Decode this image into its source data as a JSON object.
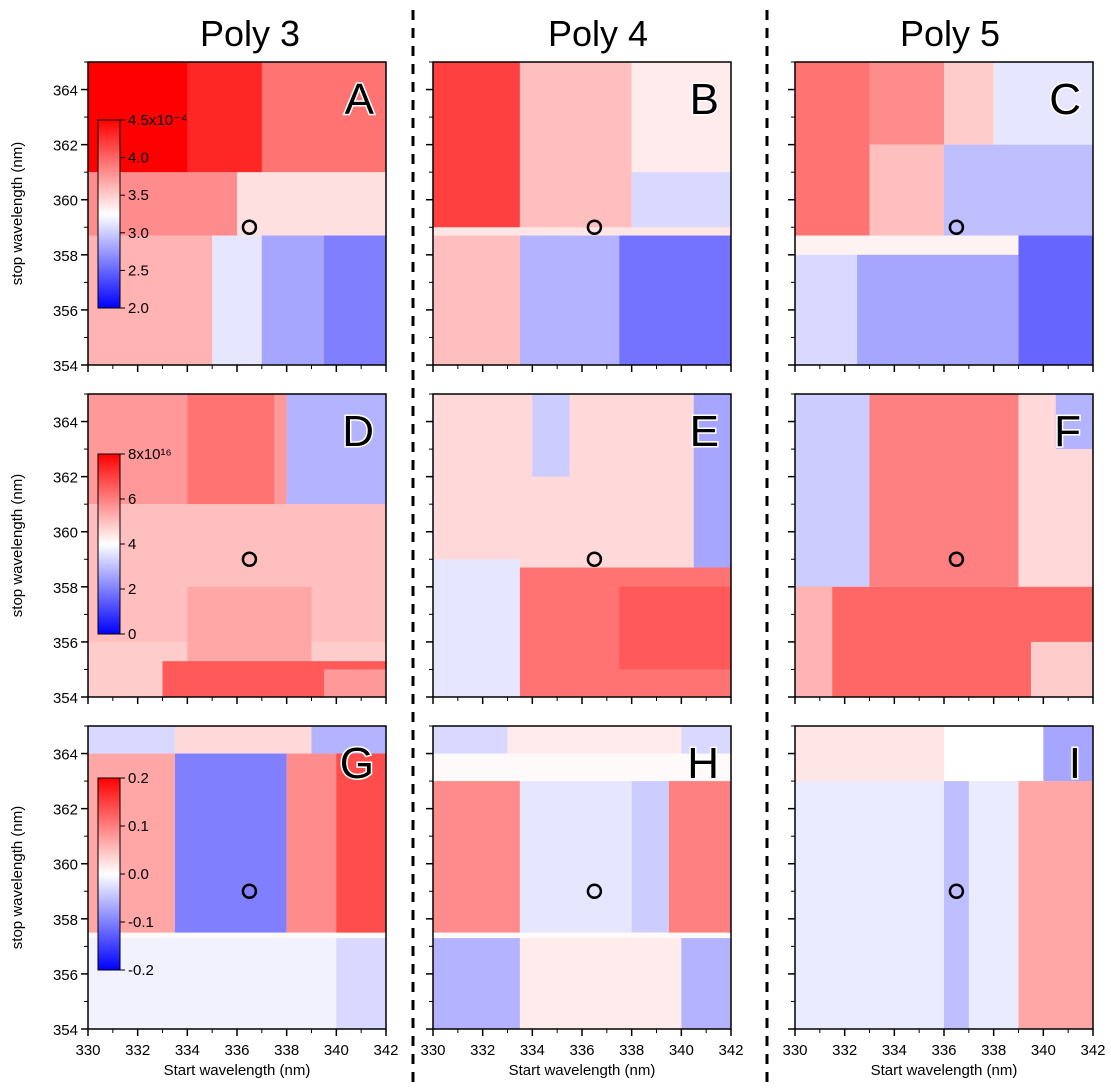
{
  "figure": {
    "column_titles": [
      "Poly 3",
      "Poly 4",
      "Poly 5"
    ],
    "ylabel": "stop wavelength (nm)",
    "xlabel": "Start wavelength (nm)"
  },
  "chart_data": {
    "type": "heatmap",
    "xlim": [
      330,
      342
    ],
    "ylim": [
      354,
      365
    ],
    "x_ticks": [
      "330",
      "332",
      "334",
      "336",
      "338",
      "340",
      "342"
    ],
    "y_ticks": [
      "354",
      "356",
      "358",
      "360",
      "362",
      "364"
    ],
    "marker": {
      "x": 336.5,
      "y": 359
    },
    "rows": [
      {
        "colorbar": {
          "ticks": [
            "4.5x10⁻⁴",
            "4.0",
            "3.5",
            "3.0",
            "2.5",
            "2.0"
          ],
          "min": 2.0,
          "max": 4.5,
          "min_color": "#0000ff",
          "mid_color": "#ffffff",
          "max_color": "#ff0000"
        },
        "panels": [
          {
            "label": "A",
            "regions": [
              [
                330,
                342,
                354,
                365,
                0.25
              ],
              [
                330,
                337,
                361,
                365,
                0.9
              ],
              [
                330,
                334,
                361,
                365,
                1.0
              ],
              [
                334,
                337,
                361,
                365,
                0.85
              ],
              [
                337,
                342,
                361,
                365,
                0.55
              ],
              [
                330,
                336,
                358.7,
                361,
                0.45
              ],
              [
                336,
                342,
                358.7,
                361,
                0.12
              ],
              [
                330,
                335,
                354,
                358.7,
                0.3
              ],
              [
                335,
                337,
                354,
                358.7,
                -0.1
              ],
              [
                337,
                339.5,
                354,
                358.7,
                -0.35
              ],
              [
                339.5,
                342,
                354,
                358.7,
                -0.5
              ]
            ]
          },
          {
            "label": "B",
            "regions": [
              [
                330,
                342,
                354,
                365,
                0.1
              ],
              [
                330,
                333.5,
                359,
                365,
                0.75
              ],
              [
                333.5,
                338,
                359,
                365,
                0.25
              ],
              [
                338,
                342,
                361,
                365,
                0.08
              ],
              [
                338,
                342,
                359,
                361,
                -0.15
              ],
              [
                330,
                333.5,
                354,
                358.7,
                0.25
              ],
              [
                333.5,
                337.5,
                354,
                358.7,
                -0.3
              ],
              [
                337.5,
                342,
                354,
                358.7,
                -0.55
              ]
            ]
          },
          {
            "label": "C",
            "regions": [
              [
                330,
                342,
                354,
                365,
                0.05
              ],
              [
                330,
                333,
                358.7,
                365,
                0.55
              ],
              [
                333,
                336,
                362,
                365,
                0.45
              ],
              [
                336,
                338,
                362,
                365,
                0.2
              ],
              [
                333,
                336,
                358.7,
                362,
                0.25
              ],
              [
                336,
                342,
                358.7,
                362,
                -0.25
              ],
              [
                338,
                342,
                362,
                365,
                -0.1
              ],
              [
                330,
                332.5,
                354,
                358,
                -0.15
              ],
              [
                332.5,
                339,
                354,
                358,
                -0.35
              ],
              [
                339,
                342,
                354,
                358.7,
                -0.6
              ]
            ]
          }
        ]
      },
      {
        "colorbar": {
          "ticks": [
            "8x10¹⁶",
            "6",
            "4",
            "2",
            "0"
          ],
          "min": 0,
          "max": 8,
          "min_color": "#0000ff",
          "mid_color": "#ffffff",
          "max_color": "#ff0000"
        },
        "panels": [
          {
            "label": "D",
            "regions": [
              [
                330,
                342,
                354,
                365,
                0.2
              ],
              [
                330,
                338,
                361,
                365,
                0.4
              ],
              [
                334,
                337.5,
                361,
                365,
                0.55
              ],
              [
                338,
                342,
                361,
                365,
                -0.3
              ],
              [
                330,
                342,
                356,
                361,
                0.25
              ],
              [
                334,
                339,
                355,
                358,
                0.35
              ],
              [
                333,
                342,
                354,
                355.3,
                0.65
              ],
              [
                339.5,
                342,
                354,
                355,
                0.4
              ]
            ]
          },
          {
            "label": "E",
            "regions": [
              [
                330,
                342,
                354,
                365,
                0.15
              ],
              [
                334,
                335.5,
                362,
                365,
                -0.2
              ],
              [
                340.5,
                342,
                358,
                365,
                -0.35
              ],
              [
                330,
                333.5,
                354,
                359,
                -0.1
              ],
              [
                333.5,
                342,
                354,
                358.7,
                0.55
              ],
              [
                337.5,
                342,
                355,
                358,
                0.65
              ]
            ]
          },
          {
            "label": "F",
            "regions": [
              [
                330,
                342,
                354,
                365,
                0.1
              ],
              [
                330,
                333,
                358,
                365,
                -0.2
              ],
              [
                333,
                339,
                358,
                365,
                0.5
              ],
              [
                339,
                342,
                358,
                365,
                0.15
              ],
              [
                340.5,
                342,
                363,
                365,
                -0.3
              ],
              [
                330,
                342,
                354,
                358,
                0.6
              ],
              [
                330,
                331.5,
                354,
                358,
                0.3
              ],
              [
                339.5,
                342,
                354,
                356,
                0.2
              ]
            ]
          }
        ]
      },
      {
        "colorbar": {
          "ticks": [
            "0.2",
            "0.1",
            "0.0",
            "-0.1",
            "-0.2"
          ],
          "min": -0.25,
          "max": 0.25,
          "min_color": "#0000ff",
          "mid_color": "#ffffff",
          "max_color": "#ff0000"
        },
        "panels": [
          {
            "label": "G",
            "regions": [
              [
                330,
                342,
                354,
                365,
                0.02
              ],
              [
                330,
                333.5,
                364,
                365,
                -0.15
              ],
              [
                333.5,
                339,
                364,
                365,
                0.15
              ],
              [
                339,
                342,
                364,
                365,
                -0.3
              ],
              [
                330,
                333.5,
                357.5,
                364,
                0.35
              ],
              [
                333.5,
                338,
                357.5,
                364,
                -0.5
              ],
              [
                338,
                342,
                357.5,
                364,
                0.45
              ],
              [
                340,
                342,
                357.5,
                364,
                0.7
              ],
              [
                330,
                342,
                354,
                357.3,
                -0.05
              ],
              [
                340,
                342,
                354,
                357.3,
                -0.15
              ]
            ]
          },
          {
            "label": "H",
            "regions": [
              [
                330,
                342,
                354,
                365,
                0.02
              ],
              [
                330,
                333,
                364,
                365,
                -0.15
              ],
              [
                333,
                340,
                364,
                365,
                0.08
              ],
              [
                340,
                342,
                364,
                365,
                -0.15
              ],
              [
                330,
                333.5,
                357.5,
                363,
                0.45
              ],
              [
                333.5,
                338,
                357.5,
                363,
                -0.1
              ],
              [
                338,
                339.5,
                357.5,
                363,
                -0.2
              ],
              [
                339.5,
                342,
                357.5,
                363,
                0.5
              ],
              [
                330,
                333.5,
                354,
                357.3,
                -0.3
              ],
              [
                333.5,
                340,
                354,
                357.3,
                0.08
              ],
              [
                340,
                342,
                354,
                357.3,
                -0.3
              ]
            ]
          },
          {
            "label": "I",
            "regions": [
              [
                330,
                342,
                354,
                365,
                0.0
              ],
              [
                330,
                336,
                363,
                365,
                0.1
              ],
              [
                340,
                342,
                363,
                365,
                -0.35
              ],
              [
                330,
                339,
                354,
                363,
                -0.08
              ],
              [
                336,
                337,
                354,
                363,
                -0.25
              ],
              [
                339,
                342,
                354,
                363,
                0.35
              ]
            ]
          }
        ]
      }
    ]
  }
}
